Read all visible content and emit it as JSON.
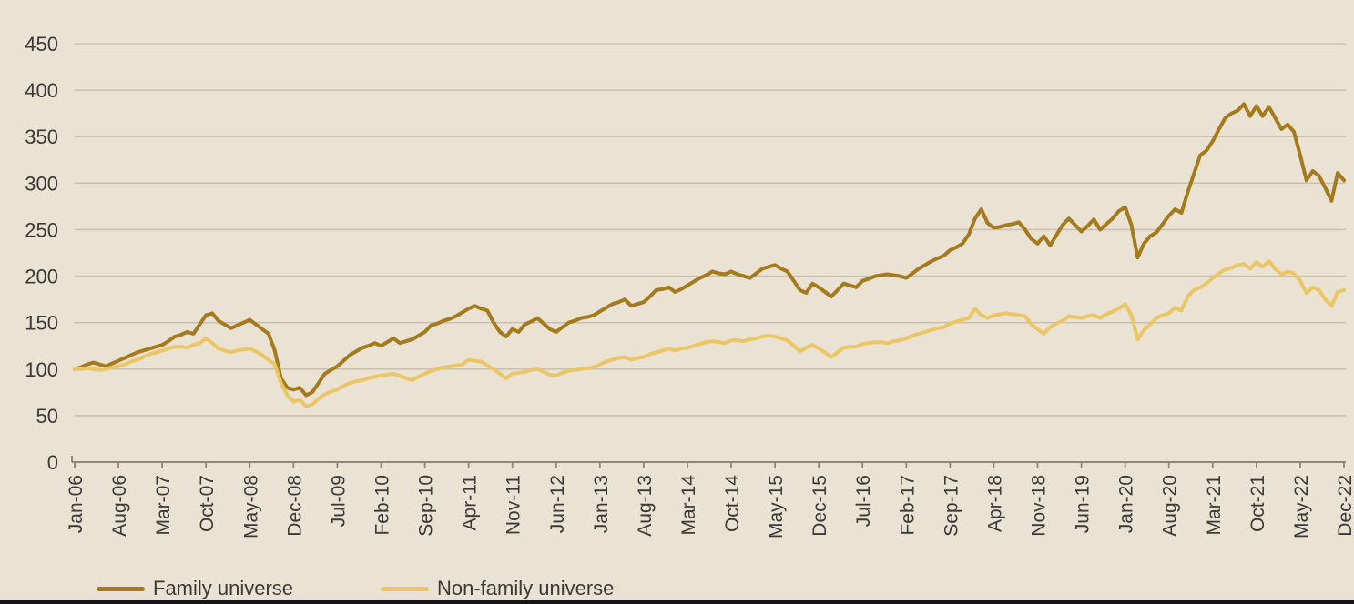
{
  "colors": {
    "background": "#EAE2D2",
    "gridline": "#C9C1B4",
    "axis": "#8E887C",
    "text": "#3A3A38",
    "family_line": "#A57A1C",
    "non_family_line": "#EBC666",
    "bottom_bar": "#15151D"
  },
  "chart_data": {
    "type": "line",
    "title": "",
    "xlabel": "",
    "ylabel": "",
    "x_unit": "month",
    "x_start": "Jan-06",
    "x_end": "Dec-22",
    "months_per_point": 1,
    "tick_every_months": 7,
    "tick_labels": [
      "Jan-06",
      "Aug-06",
      "Mar-07",
      "Oct-07",
      "May-08",
      "Dec-08",
      "Jul-09",
      "Feb-10",
      "Sep-10",
      "Apr-11",
      "Nov-11",
      "Jun-12",
      "Jan-13",
      "Aug-13",
      "Mar-14",
      "Oct-14",
      "May-15",
      "Dec-15",
      "Jul-16",
      "Feb-17",
      "Sep-17",
      "Apr-18",
      "Nov-18",
      "Jun-19",
      "Jan-20",
      "Aug-20",
      "Mar-21",
      "Oct-21",
      "May-22",
      "Dec-22"
    ],
    "ylim": [
      0,
      450
    ],
    "y_ticks": [
      0,
      50,
      100,
      150,
      200,
      250,
      300,
      350,
      400,
      450
    ],
    "grid": "horizontal",
    "legend_position": "bottom-left",
    "base_value": 100,
    "series": [
      {
        "name": "Family universe",
        "color": "#A57A1C",
        "values": [
          100,
          102,
          105,
          107,
          105,
          103,
          106,
          109,
          112,
          115,
          118,
          120,
          122,
          124,
          126,
          130,
          135,
          137,
          140,
          138,
          148,
          158,
          160,
          152,
          148,
          144,
          147,
          150,
          153,
          148,
          143,
          138,
          120,
          90,
          80,
          78,
          80,
          72,
          75,
          85,
          95,
          99,
          103,
          109,
          115,
          119,
          123,
          125,
          128,
          125,
          129,
          133,
          128,
          130,
          132,
          136,
          140,
          147,
          149,
          152,
          154,
          157,
          161,
          165,
          168,
          165,
          163,
          150,
          140,
          135,
          143,
          140,
          148,
          151,
          155,
          149,
          143,
          140,
          145,
          150,
          152,
          155,
          156,
          158,
          162,
          166,
          170,
          172,
          175,
          168,
          170,
          172,
          178,
          185,
          186,
          188,
          183,
          186,
          190,
          194,
          198,
          201,
          205,
          203,
          202,
          205,
          202,
          200,
          198,
          203,
          208,
          210,
          212,
          208,
          205,
          195,
          185,
          182,
          192,
          188,
          183,
          178,
          185,
          192,
          190,
          188,
          195,
          197,
          200,
          201,
          202,
          201,
          200,
          198,
          203,
          208,
          212,
          216,
          219,
          222,
          228,
          231,
          235,
          245,
          262,
          272,
          257,
          252,
          253,
          255,
          256,
          258,
          250,
          240,
          235,
          243,
          233,
          244,
          255,
          262,
          255,
          248,
          254,
          261,
          250,
          256,
          262,
          270,
          274,
          255,
          220,
          235,
          243,
          247,
          256,
          265,
          272,
          268,
          290,
          310,
          330,
          335,
          345,
          358,
          370,
          375,
          378,
          385,
          372,
          383,
          372,
          382,
          370,
          358,
          363,
          355,
          330,
          303,
          313,
          308,
          295,
          281,
          311,
          303
        ]
      },
      {
        "name": "Non-family universe",
        "color": "#EBC666",
        "values": [
          100,
          100,
          101,
          100,
          99,
          100,
          102,
          103,
          105,
          108,
          110,
          113,
          116,
          118,
          120,
          122,
          124,
          124,
          123,
          126,
          128,
          133,
          128,
          122,
          120,
          118,
          120,
          121,
          122,
          119,
          115,
          110,
          105,
          85,
          72,
          65,
          67,
          60,
          62,
          68,
          73,
          76,
          78,
          82,
          85,
          87,
          88,
          90,
          92,
          93,
          94,
          95,
          93,
          90,
          88,
          92,
          95,
          98,
          100,
          102,
          103,
          104,
          105,
          110,
          109,
          108,
          104,
          100,
          95,
          90,
          95,
          96,
          97,
          99,
          100,
          97,
          94,
          93,
          96,
          98,
          99,
          100,
          101,
          102,
          105,
          108,
          110,
          112,
          113,
          110,
          112,
          113,
          116,
          118,
          120,
          122,
          120,
          122,
          123,
          125,
          127,
          129,
          130,
          129,
          128,
          131,
          131,
          130,
          132,
          133,
          135,
          136,
          135,
          133,
          131,
          125,
          119,
          123,
          126,
          122,
          118,
          113,
          118,
          123,
          124,
          124,
          127,
          128,
          129,
          129,
          128,
          130,
          131,
          133,
          136,
          138,
          140,
          142,
          144,
          145,
          149,
          151,
          153,
          155,
          165,
          158,
          155,
          158,
          159,
          160,
          159,
          158,
          157,
          148,
          143,
          138,
          145,
          149,
          152,
          157,
          156,
          155,
          157,
          158,
          155,
          159,
          162,
          165,
          170,
          158,
          132,
          142,
          148,
          155,
          158,
          160,
          166,
          163,
          178,
          185,
          188,
          192,
          198,
          203,
          207,
          209,
          212,
          213,
          208,
          215,
          210,
          216,
          208,
          202,
          205,
          203,
          195,
          182,
          188,
          185,
          175,
          168,
          183,
          185
        ]
      }
    ]
  },
  "legend": {
    "items": [
      {
        "label": "Family universe"
      },
      {
        "label": "Non-family universe"
      }
    ]
  }
}
